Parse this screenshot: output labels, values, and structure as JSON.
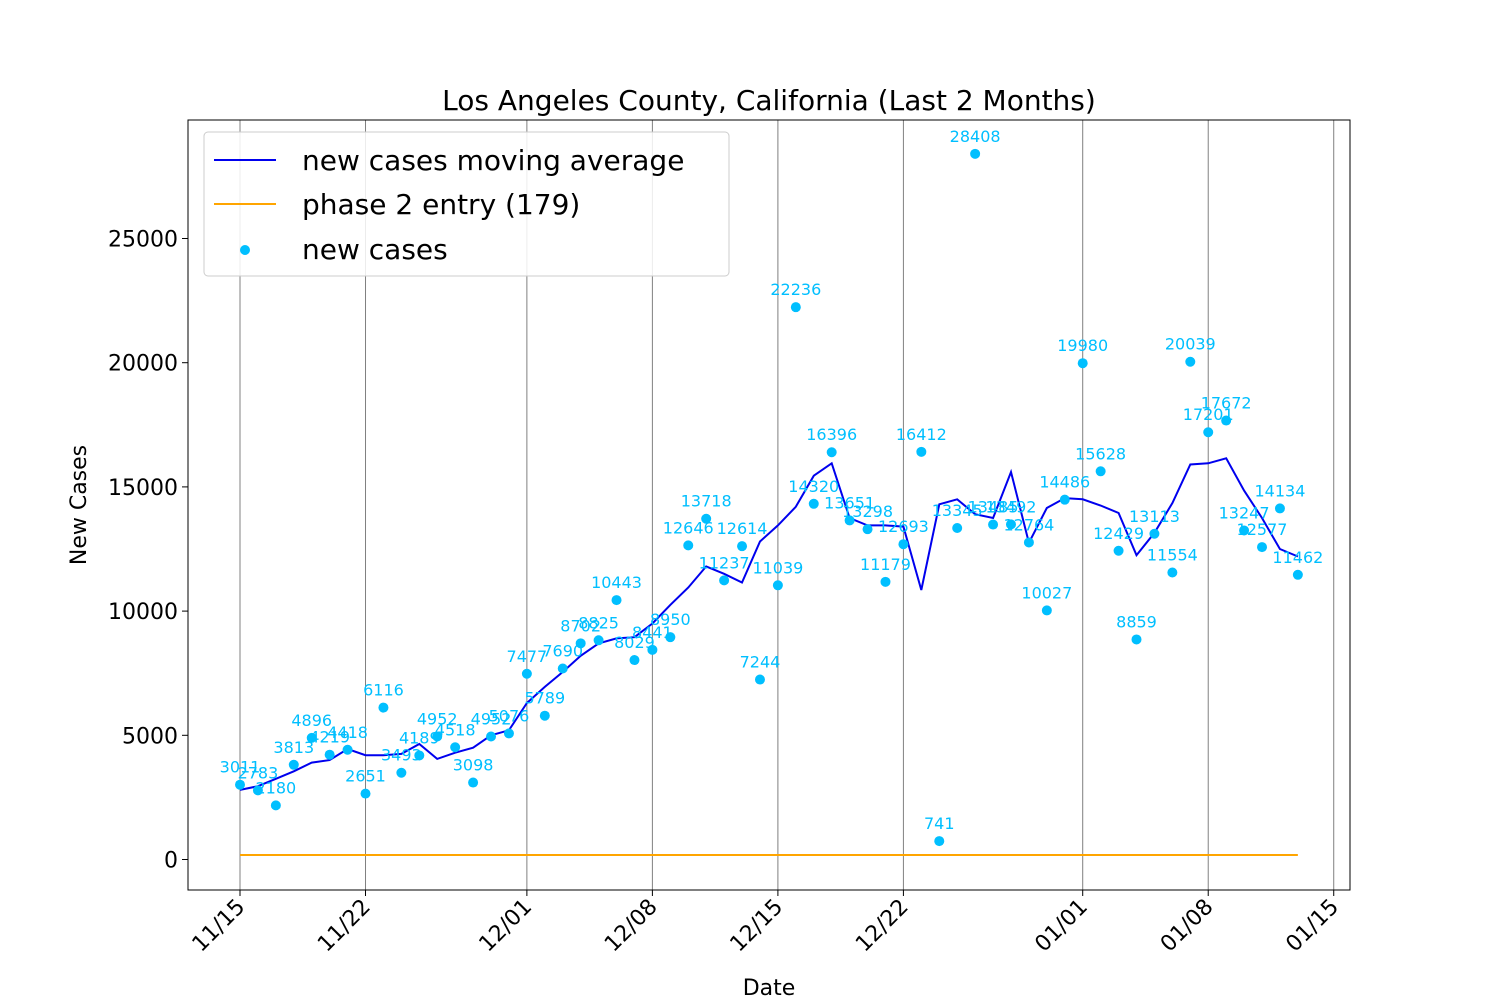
{
  "chart_data": {
    "type": "line",
    "title": "Los Angeles County, California (Last 2 Months)",
    "xlabel": "Date",
    "ylabel": "New Cases",
    "x_ticks": [
      "11/15",
      "11/22",
      "12/01",
      "12/08",
      "12/15",
      "12/22",
      "01/01",
      "01/08",
      "01/15"
    ],
    "y_ticks": [
      "0",
      "5000",
      "10000",
      "15000",
      "20000",
      "25000"
    ],
    "ylim": [
      -1200,
      29800
    ],
    "grid": "vertical lines at x ticks",
    "legend_position": "top-left",
    "series": [
      {
        "name": "new cases moving average",
        "type": "line",
        "color": "#0000ee",
        "values": [
          2800,
          2950,
          3250,
          3550,
          3900,
          4000,
          4450,
          4200,
          4200,
          4250,
          4650,
          4050,
          4300,
          4500,
          5000,
          5200,
          6300,
          6950,
          7550,
          8200,
          8700,
          8900,
          8950,
          9500,
          10250,
          10950,
          11800,
          11500,
          11150,
          12800,
          13450,
          14200,
          15450,
          15950,
          13750,
          13450,
          13450,
          13400,
          10850,
          14300,
          14500,
          13900,
          13750,
          15600,
          12750,
          14150,
          14550,
          14500,
          14250,
          13950,
          12250,
          13150,
          14350,
          15900,
          15950,
          16150,
          14850,
          13750,
          12500,
          12200
        ],
        "labels": []
      },
      {
        "name": "phase 2 entry (179)",
        "type": "line",
        "color": "#ffa500",
        "values": [
          179
        ]
      },
      {
        "name": "new cases",
        "type": "scatter",
        "color": "#00bfff",
        "values": [
          3011,
          2783,
          2180,
          3813,
          4896,
          4219,
          4418,
          2651,
          6116,
          3493,
          4189,
          4952,
          4518,
          3098,
          4952,
          5076,
          7477,
          5789,
          7690,
          8702,
          8825,
          10443,
          8029,
          8441,
          8950,
          12646,
          13718,
          11237,
          12614,
          7244,
          11039,
          22236,
          14320,
          16396,
          13651,
          13298,
          11179,
          12693,
          16412,
          741,
          13345,
          28408,
          13485,
          13492,
          12764,
          10027,
          14486,
          19980,
          15628,
          12429,
          8859,
          13113,
          11554,
          20039,
          17201,
          17672,
          13247,
          12577,
          14134,
          11462
        ],
        "labels": [
          "3011",
          "2783",
          "2180",
          "3813",
          "4896",
          "4219",
          "4418",
          "2651",
          "6116",
          "3493",
          "4189",
          "4952",
          "4518",
          "3098",
          "4952",
          "5076",
          "7477",
          "5789",
          "7690",
          "8702",
          "8825",
          "10443",
          "8029",
          "8441",
          "8950",
          "12646",
          "13718",
          "11237",
          "12614",
          "7244",
          "11039",
          "22236",
          "14320",
          "16396",
          "13651",
          "13298",
          "11179",
          "12693",
          "16412",
          "741",
          "13345",
          "28408",
          "13485",
          "13492",
          "12764",
          "10027",
          "14486",
          "19980",
          "15628",
          "12429",
          "8859",
          "13113",
          "11554",
          "20039",
          "17201",
          "17672",
          "13247",
          "12577",
          "14134",
          "11462"
        ]
      }
    ]
  }
}
